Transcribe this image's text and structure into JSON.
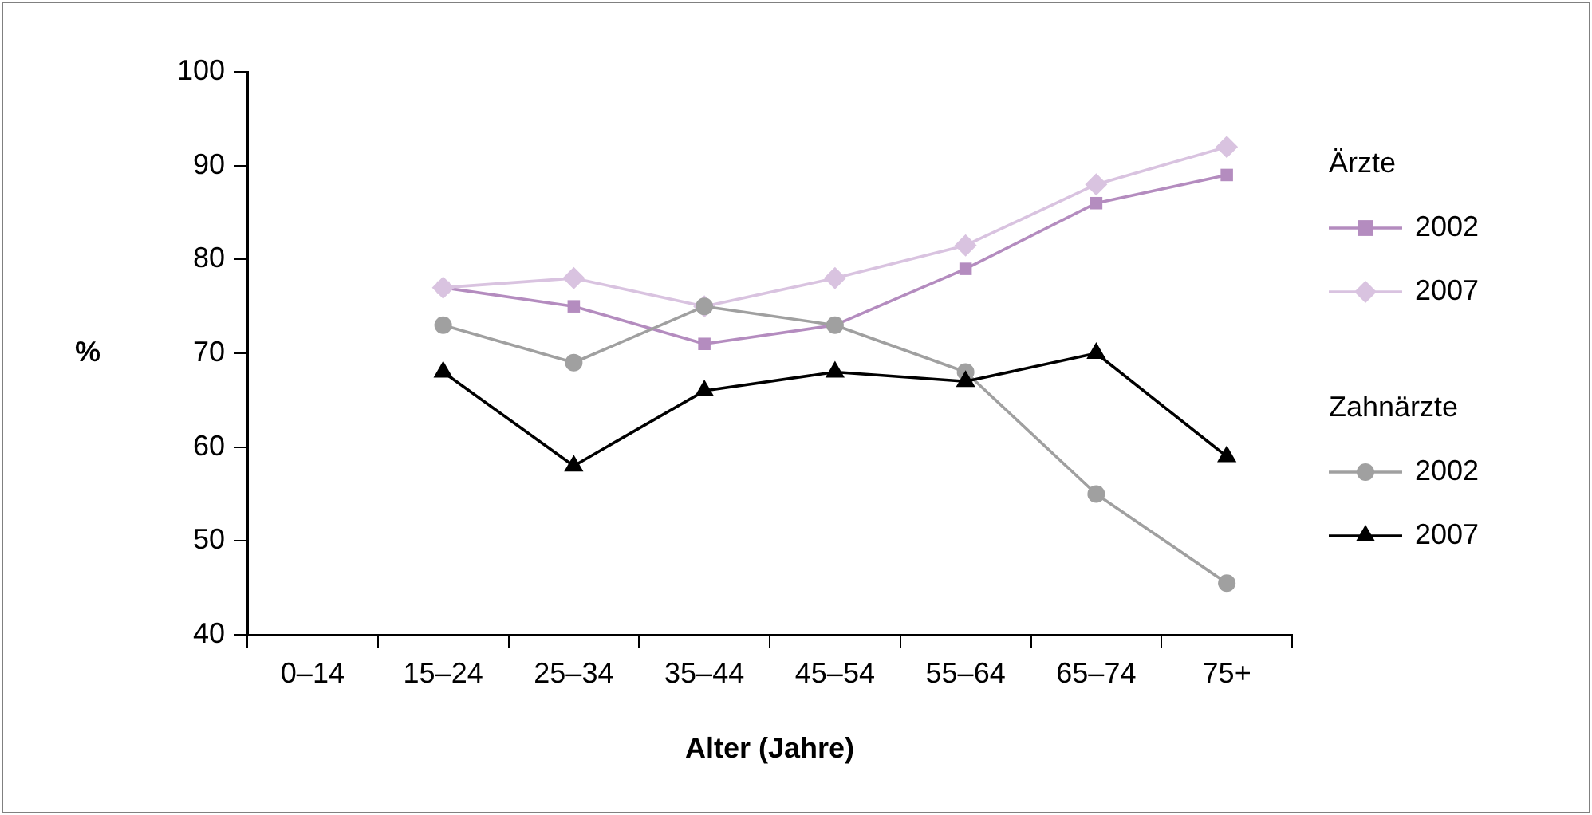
{
  "chart_data": {
    "type": "line",
    "xlabel": "Alter (Jahre)",
    "ylabel": "%",
    "categories": [
      "0–14",
      "15–24",
      "25–34",
      "35–44",
      "45–54",
      "55–64",
      "65–74",
      "75+"
    ],
    "series": [
      {
        "name": "2002",
        "color": "#b48cbf",
        "marker": "square",
        "values": [
          null,
          77,
          75,
          71,
          73,
          79,
          86,
          89
        ]
      },
      {
        "name": "2007",
        "color": "#d9c3e0",
        "marker": "diamond",
        "values": [
          null,
          77,
          78,
          75,
          78,
          81.5,
          88,
          92
        ]
      },
      {
        "name": "2002",
        "color": "#a0a0a0",
        "marker": "circle",
        "values": [
          null,
          73,
          69,
          75,
          73,
          68,
          55,
          45.5
        ]
      },
      {
        "name": "2007",
        "color": "#000000",
        "marker": "triangle",
        "values": [
          null,
          68,
          58,
          66,
          68,
          67,
          70,
          59
        ]
      }
    ],
    "annotations": [
      "Ärzte",
      "Zahnärzte"
    ],
    "ylim": [
      40,
      100
    ],
    "yticks": [
      40,
      50,
      60,
      70,
      80,
      90,
      100
    ],
    "legend": "right"
  }
}
